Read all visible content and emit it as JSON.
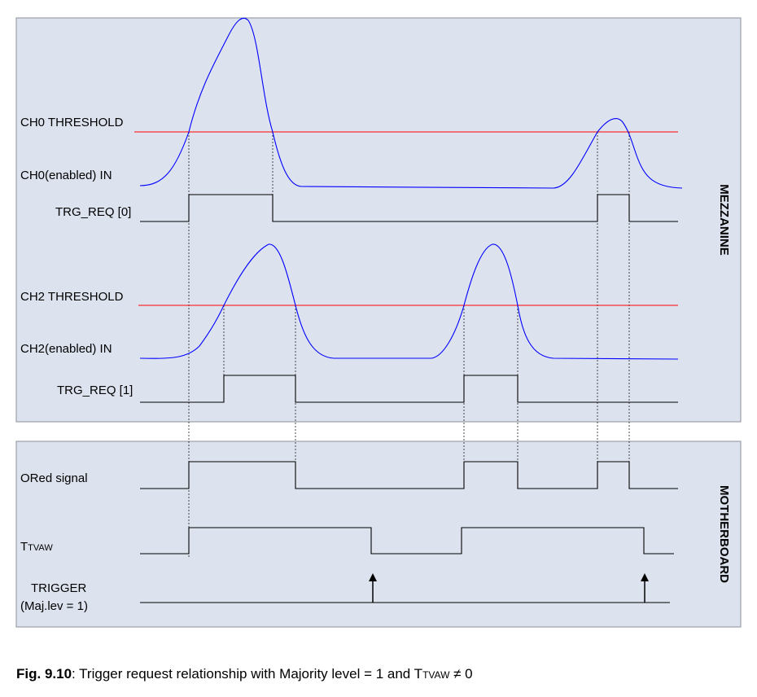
{
  "colors": {
    "panel_fill": "#dde3ee",
    "panel_border": "#8a8f99",
    "threshold": "#ff0000",
    "analog": "#0000ff",
    "digital": "#000000"
  },
  "mezzanine": {
    "title": "MEZZANINE",
    "ch0_threshold": "CH0 THRESHOLD",
    "ch0_in": "CH0(enabled) IN",
    "trg_req0": "TRG_REQ [0]",
    "ch2_threshold": "CH2 THRESHOLD",
    "ch2_in": "CH2(enabled) IN",
    "trg_req1": "TRG_REQ [1]"
  },
  "motherboard": {
    "title": "MOTHERBOARD",
    "ored": "ORed signal",
    "ttvaw_main": "T",
    "ttvaw_sub": "TVAW",
    "trigger_line1": "TRIGGER",
    "trigger_line2": "(Maj.lev = 1)"
  },
  "caption": {
    "fig": "Fig. 9.10",
    "text": ": Trigger request relationship with Majority level = 1 and T",
    "sub": "TVAW",
    "tail": " ≠ 0"
  }
}
